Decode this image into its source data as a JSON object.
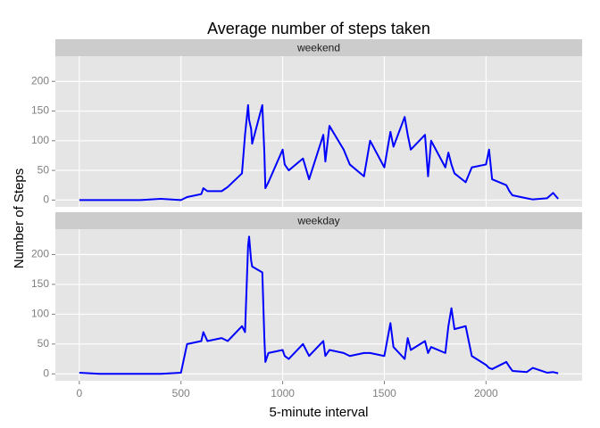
{
  "chart_data": {
    "type": "line",
    "title": "Average number of steps taken",
    "x_label": "5-minute interval",
    "y_label": "Number of Steps",
    "x": [
      0,
      100,
      200,
      300,
      400,
      500,
      530,
      600,
      610,
      630,
      700,
      730,
      800,
      815,
      830,
      835,
      845,
      850,
      900,
      910,
      915,
      930,
      1000,
      1010,
      1030,
      1100,
      1130,
      1200,
      1210,
      1230,
      1300,
      1330,
      1400,
      1430,
      1500,
      1530,
      1545,
      1600,
      1615,
      1630,
      1700,
      1715,
      1730,
      1800,
      1815,
      1830,
      1845,
      1900,
      1930,
      2000,
      2015,
      2030,
      2100,
      2115,
      2130,
      2200,
      2230,
      2300,
      2330,
      2355
    ],
    "series": [
      {
        "name": "weekend",
        "color": "#0000ff",
        "values": [
          0,
          0,
          0,
          0,
          2,
          0,
          5,
          10,
          20,
          15,
          15,
          22,
          45,
          110,
          160,
          135,
          120,
          95,
          160,
          80,
          20,
          30,
          85,
          60,
          50,
          70,
          35,
          110,
          65,
          125,
          85,
          60,
          40,
          100,
          55,
          115,
          90,
          140,
          110,
          85,
          110,
          40,
          100,
          55,
          80,
          60,
          45,
          30,
          55,
          60,
          85,
          35,
          25,
          15,
          8,
          3,
          1,
          3,
          12,
          2
        ]
      },
      {
        "name": "weekday",
        "color": "#0000ff",
        "values": [
          2,
          0,
          0,
          0,
          0,
          2,
          50,
          55,
          70,
          55,
          60,
          55,
          80,
          70,
          215,
          230,
          190,
          180,
          170,
          60,
          20,
          35,
          40,
          30,
          25,
          50,
          30,
          55,
          30,
          40,
          35,
          30,
          35,
          35,
          30,
          85,
          45,
          25,
          60,
          40,
          55,
          35,
          45,
          35,
          80,
          110,
          75,
          80,
          30,
          15,
          10,
          8,
          20,
          12,
          5,
          3,
          10,
          2,
          3,
          1
        ]
      }
    ],
    "xlim": [
      -117.75,
      2472.75
    ],
    "xticks": [
      0,
      500,
      1000,
      1500,
      2000
    ],
    "ylim": [
      -11.5,
      242.5
    ],
    "yticks": [
      0,
      50,
      100,
      150,
      200
    ],
    "grid": true
  }
}
